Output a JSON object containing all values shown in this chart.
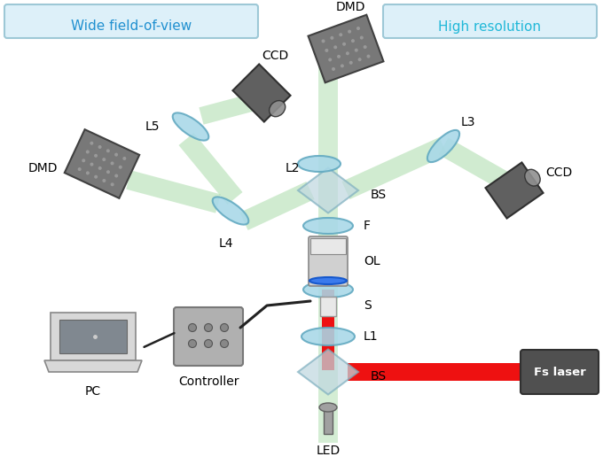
{
  "bg_color": "#ffffff",
  "beam_green": "#aadcaa",
  "beam_green_edge": "#78c878",
  "beam_red": "#ee1111",
  "lens_color": "#a8d8e8",
  "lens_edge": "#60a8c0",
  "bs_color": "#c0d8e0",
  "bs_edge": "#80b0c0",
  "dmd_color": "#787878",
  "dmd_dark": "#404040",
  "dmd_grid": "#b0b0b0",
  "ccd_color": "#606060",
  "ccd_dark": "#303030",
  "ccd_barrel": "#909090",
  "ol_body": "#d0d0d0",
  "ol_top": "#e8e8e8",
  "ol_ring": "#3377ee",
  "ol_ring_dark": "#1155cc",
  "led_color": "#a0a0a0",
  "led_dark": "#606060",
  "pc_frame": "#d8d8d8",
  "pc_screen": "#808890",
  "pc_body": "#c8c8c8",
  "ctrl_color": "#b0b0b0",
  "ctrl_dark": "#787878",
  "ctrl_btn": "#888888",
  "wire_color": "#222222",
  "label_color": "#000000",
  "title_left_color": "#2090d0",
  "title_right_color": "#20b8d8",
  "box_bg": "#d8eef8",
  "box_edge": "#90c0d0",
  "fs_laser_color": "#505050",
  "fs_laser_dark": "#303030",
  "figsize": [
    6.8,
    5.33
  ],
  "dpi": 100,
  "title_left": "Wide field-of-view",
  "title_right": "High resolution",
  "fs_laser_label": "Fs laser",
  "labels": {
    "DMD_top": "DMD",
    "DMD_left": "DMD",
    "CCD_left": "CCD",
    "CCD_right": "CCD",
    "L1": "L1",
    "L2": "L2",
    "L3": "L3",
    "L4": "L4",
    "L5": "L5",
    "BS_top": "BS",
    "BS_bot": "BS",
    "F": "F",
    "OL": "OL",
    "S": "S",
    "PC": "PC",
    "Controller": "Controller",
    "LED": "LED"
  }
}
